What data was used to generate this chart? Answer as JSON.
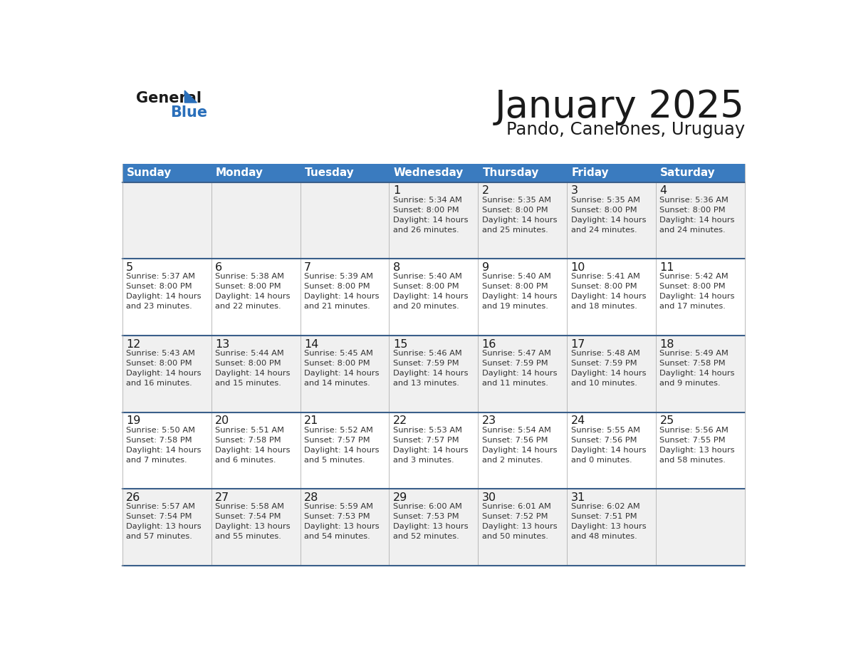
{
  "title": "January 2025",
  "subtitle": "Pando, Canelones, Uruguay",
  "days_of_week": [
    "Sunday",
    "Monday",
    "Tuesday",
    "Wednesday",
    "Thursday",
    "Friday",
    "Saturday"
  ],
  "header_bg": "#3a7bbf",
  "header_text": "#ffffff",
  "row_bg_even": "#f0f0f0",
  "row_bg_odd": "#ffffff",
  "cell_border_color": "#b0b0b0",
  "row_border_color": "#3a5f8a",
  "title_color": "#1a1a1a",
  "subtitle_color": "#1a1a1a",
  "day_num_color": "#1a1a1a",
  "cell_text_color": "#333333",
  "logo_text_color": "#1a1a1a",
  "logo_blue_color": "#2a6fba",
  "weeks": [
    {
      "days": [
        {
          "day": null,
          "info": null
        },
        {
          "day": null,
          "info": null
        },
        {
          "day": null,
          "info": null
        },
        {
          "day": 1,
          "info": "Sunrise: 5:34 AM\nSunset: 8:00 PM\nDaylight: 14 hours\nand 26 minutes."
        },
        {
          "day": 2,
          "info": "Sunrise: 5:35 AM\nSunset: 8:00 PM\nDaylight: 14 hours\nand 25 minutes."
        },
        {
          "day": 3,
          "info": "Sunrise: 5:35 AM\nSunset: 8:00 PM\nDaylight: 14 hours\nand 24 minutes."
        },
        {
          "day": 4,
          "info": "Sunrise: 5:36 AM\nSunset: 8:00 PM\nDaylight: 14 hours\nand 24 minutes."
        }
      ]
    },
    {
      "days": [
        {
          "day": 5,
          "info": "Sunrise: 5:37 AM\nSunset: 8:00 PM\nDaylight: 14 hours\nand 23 minutes."
        },
        {
          "day": 6,
          "info": "Sunrise: 5:38 AM\nSunset: 8:00 PM\nDaylight: 14 hours\nand 22 minutes."
        },
        {
          "day": 7,
          "info": "Sunrise: 5:39 AM\nSunset: 8:00 PM\nDaylight: 14 hours\nand 21 minutes."
        },
        {
          "day": 8,
          "info": "Sunrise: 5:40 AM\nSunset: 8:00 PM\nDaylight: 14 hours\nand 20 minutes."
        },
        {
          "day": 9,
          "info": "Sunrise: 5:40 AM\nSunset: 8:00 PM\nDaylight: 14 hours\nand 19 minutes."
        },
        {
          "day": 10,
          "info": "Sunrise: 5:41 AM\nSunset: 8:00 PM\nDaylight: 14 hours\nand 18 minutes."
        },
        {
          "day": 11,
          "info": "Sunrise: 5:42 AM\nSunset: 8:00 PM\nDaylight: 14 hours\nand 17 minutes."
        }
      ]
    },
    {
      "days": [
        {
          "day": 12,
          "info": "Sunrise: 5:43 AM\nSunset: 8:00 PM\nDaylight: 14 hours\nand 16 minutes."
        },
        {
          "day": 13,
          "info": "Sunrise: 5:44 AM\nSunset: 8:00 PM\nDaylight: 14 hours\nand 15 minutes."
        },
        {
          "day": 14,
          "info": "Sunrise: 5:45 AM\nSunset: 8:00 PM\nDaylight: 14 hours\nand 14 minutes."
        },
        {
          "day": 15,
          "info": "Sunrise: 5:46 AM\nSunset: 7:59 PM\nDaylight: 14 hours\nand 13 minutes."
        },
        {
          "day": 16,
          "info": "Sunrise: 5:47 AM\nSunset: 7:59 PM\nDaylight: 14 hours\nand 11 minutes."
        },
        {
          "day": 17,
          "info": "Sunrise: 5:48 AM\nSunset: 7:59 PM\nDaylight: 14 hours\nand 10 minutes."
        },
        {
          "day": 18,
          "info": "Sunrise: 5:49 AM\nSunset: 7:58 PM\nDaylight: 14 hours\nand 9 minutes."
        }
      ]
    },
    {
      "days": [
        {
          "day": 19,
          "info": "Sunrise: 5:50 AM\nSunset: 7:58 PM\nDaylight: 14 hours\nand 7 minutes."
        },
        {
          "day": 20,
          "info": "Sunrise: 5:51 AM\nSunset: 7:58 PM\nDaylight: 14 hours\nand 6 minutes."
        },
        {
          "day": 21,
          "info": "Sunrise: 5:52 AM\nSunset: 7:57 PM\nDaylight: 14 hours\nand 5 minutes."
        },
        {
          "day": 22,
          "info": "Sunrise: 5:53 AM\nSunset: 7:57 PM\nDaylight: 14 hours\nand 3 minutes."
        },
        {
          "day": 23,
          "info": "Sunrise: 5:54 AM\nSunset: 7:56 PM\nDaylight: 14 hours\nand 2 minutes."
        },
        {
          "day": 24,
          "info": "Sunrise: 5:55 AM\nSunset: 7:56 PM\nDaylight: 14 hours\nand 0 minutes."
        },
        {
          "day": 25,
          "info": "Sunrise: 5:56 AM\nSunset: 7:55 PM\nDaylight: 13 hours\nand 58 minutes."
        }
      ]
    },
    {
      "days": [
        {
          "day": 26,
          "info": "Sunrise: 5:57 AM\nSunset: 7:54 PM\nDaylight: 13 hours\nand 57 minutes."
        },
        {
          "day": 27,
          "info": "Sunrise: 5:58 AM\nSunset: 7:54 PM\nDaylight: 13 hours\nand 55 minutes."
        },
        {
          "day": 28,
          "info": "Sunrise: 5:59 AM\nSunset: 7:53 PM\nDaylight: 13 hours\nand 54 minutes."
        },
        {
          "day": 29,
          "info": "Sunrise: 6:00 AM\nSunset: 7:53 PM\nDaylight: 13 hours\nand 52 minutes."
        },
        {
          "day": 30,
          "info": "Sunrise: 6:01 AM\nSunset: 7:52 PM\nDaylight: 13 hours\nand 50 minutes."
        },
        {
          "day": 31,
          "info": "Sunrise: 6:02 AM\nSunset: 7:51 PM\nDaylight: 13 hours\nand 48 minutes."
        },
        {
          "day": null,
          "info": null
        }
      ]
    }
  ]
}
